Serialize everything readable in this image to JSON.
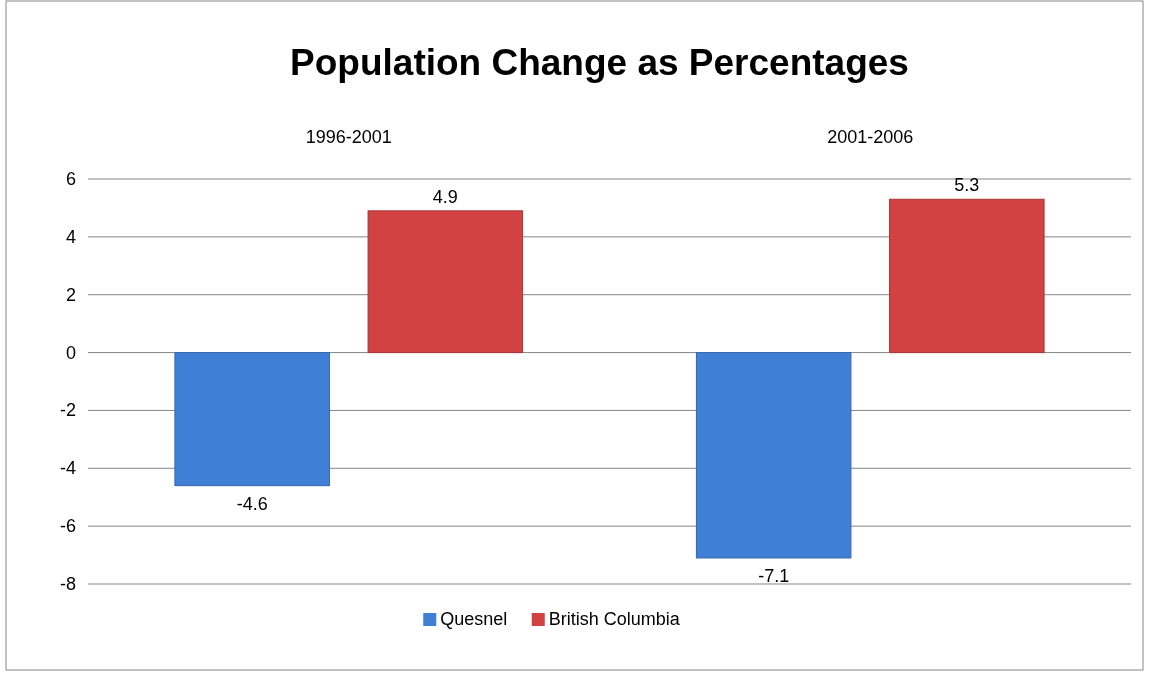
{
  "chart_data": {
    "type": "bar",
    "title": "Population Change as Percentages",
    "categories": [
      "1996-2001",
      "2001-2006"
    ],
    "series": [
      {
        "name": "Quesnel",
        "color": "#3f7fd6",
        "values": [
          -4.6,
          -7.1
        ]
      },
      {
        "name": "British Columbia",
        "color": "#d24242",
        "values": [
          4.9,
          5.3
        ]
      }
    ],
    "ylim": [
      -8,
      6
    ],
    "yticks": [
      -8,
      -6,
      -4,
      -2,
      0,
      2,
      4,
      6
    ],
    "grid": "y",
    "data_labels": true,
    "legend": "bottom"
  }
}
